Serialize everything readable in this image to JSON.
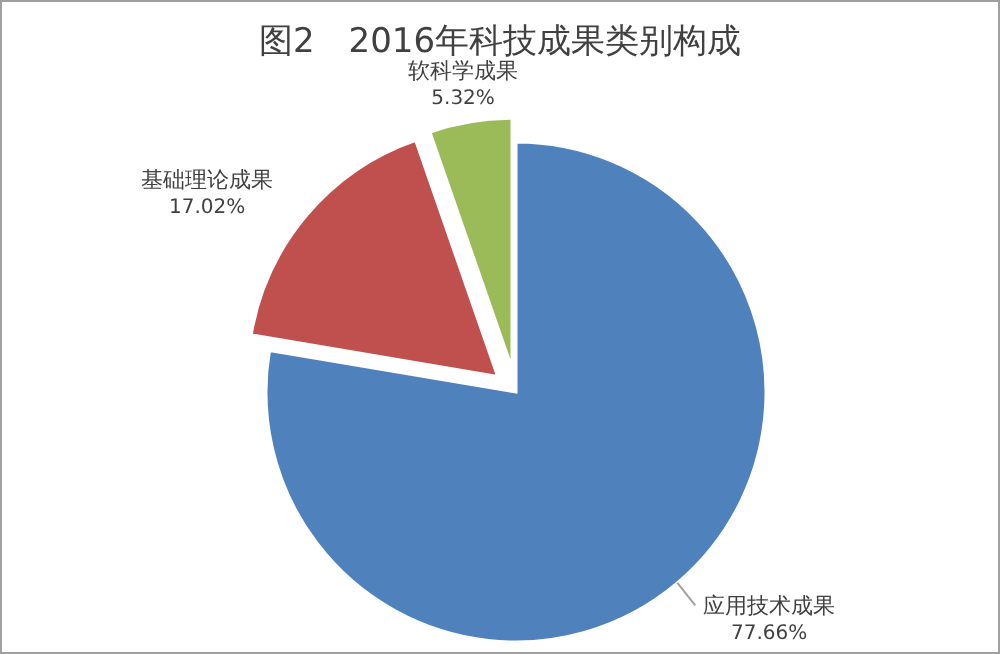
{
  "chart_data": {
    "type": "pie",
    "title": "图2　2016年科技成果类别构成",
    "categories": [
      "应用技术成果",
      "基础理论成果",
      "软科学成果"
    ],
    "values": [
      77.66,
      17.02,
      5.32
    ],
    "colors": [
      "#4f81bd",
      "#c0504d",
      "#9bbb59"
    ],
    "value_labels": [
      "77.66%",
      "17.02%",
      "5.32%"
    ]
  }
}
